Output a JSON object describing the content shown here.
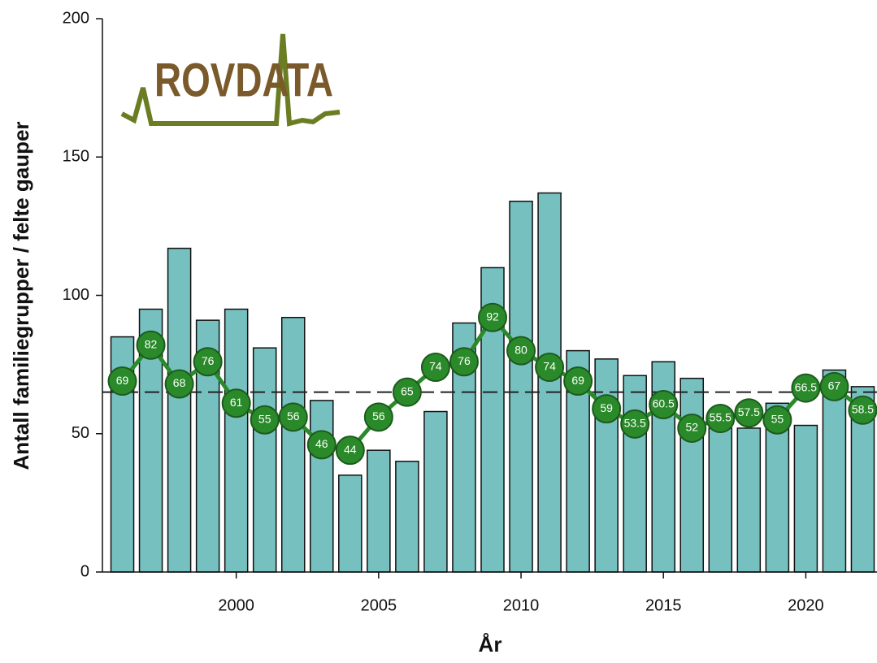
{
  "chart_data": {
    "type": "bar-line",
    "logo": "ROVDATA",
    "xlabel": "År",
    "ylabel": "Antall familiegrupper / felte gauper",
    "x": [
      1996,
      1997,
      1998,
      1999,
      2000,
      2001,
      2002,
      2003,
      2004,
      2005,
      2006,
      2007,
      2008,
      2009,
      2010,
      2011,
      2012,
      2013,
      2014,
      2015,
      2016,
      2017,
      2018,
      2019,
      2020,
      2021,
      2022
    ],
    "series": [
      {
        "type": "bar",
        "color": "#76c0c0",
        "values": [
          85,
          95,
          117,
          91,
          95,
          81,
          92,
          62,
          35,
          44,
          40,
          58,
          90,
          110,
          134,
          137,
          80,
          77,
          71,
          76,
          70,
          52,
          52,
          61,
          53,
          73,
          67
        ]
      },
      {
        "type": "line",
        "color": "#2a8a2a",
        "values": [
          69,
          82,
          68,
          76,
          61,
          55,
          56,
          46,
          44,
          56,
          65,
          74,
          76,
          92,
          80,
          74,
          69,
          59,
          53.5,
          60.5,
          52,
          55.5,
          57.5,
          55,
          66.5,
          67,
          58.5
        ]
      }
    ],
    "reference_line": 65,
    "xlim": [
      1995.3,
      2022.5
    ],
    "xticks": [
      2000,
      2005,
      2010,
      2015,
      2020
    ],
    "ylim": [
      0,
      200
    ],
    "yticks": [
      0,
      50,
      100,
      150,
      200
    ]
  }
}
